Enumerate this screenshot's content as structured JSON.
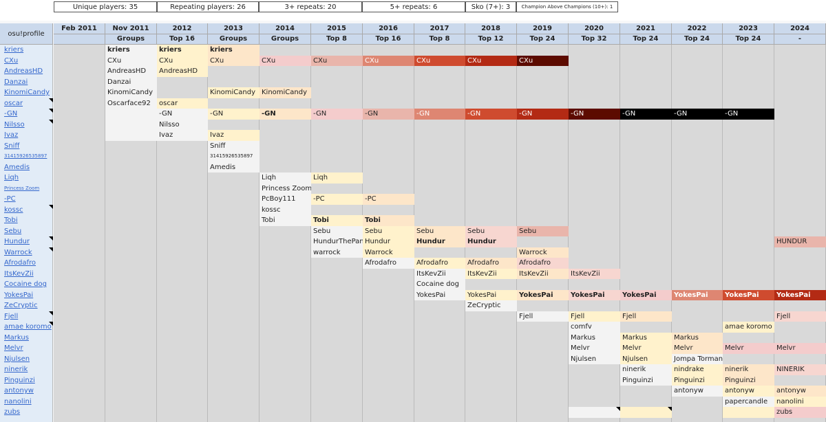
{
  "stats": [
    {
      "label": "Unique players: 35",
      "left": 0,
      "width": 0
    },
    {
      "label": "Repeating players: 26"
    },
    {
      "label": "3+ repeats: 20"
    },
    {
      "label": "5+ repeats: 6"
    },
    {
      "label": "Sko (7+): 3"
    },
    {
      "label": "Champion Above Champions (10+): 1"
    }
  ],
  "profile_header": "osu!profile",
  "players": [
    "kriers",
    "CXu",
    "AndreasHD",
    "Danzai",
    "KinomiCandy",
    "oscar",
    "-GN",
    "Nilsso",
    "Ivaz",
    "Sniff",
    "31415926535897",
    "Amedis",
    "Liqh",
    "Princess Zoom",
    "-PC",
    "kossc",
    "Tobi",
    "Sebu",
    "Hundur",
    "Warrock",
    "Afrodafro",
    "ItsKevZii",
    "Cocaine dog",
    "YokesPai",
    "ZeCryptic",
    "Fjell",
    "amae koromo",
    "Markus",
    "Melvr",
    "Njulsen",
    "ninerik",
    "Pinguinzi",
    "antonyw",
    "nanolini",
    "zubs"
  ],
  "colors": {
    "c0": "#f3f3f3",
    "c1": "#fff2cc",
    "c2": "#fde6c9",
    "c3": "#f7d6d0",
    "c4": "#f4cccc",
    "c5": "#e9b5ab",
    "c6": "#de8672",
    "c7": "#cf4b2f",
    "c8": "#b32a14",
    "c9": "#5c0b00",
    "c10": "#000000"
  },
  "years": [
    {
      "year": "Feb 2011",
      "sub": "",
      "cells": []
    },
    {
      "year": "Nov 2011",
      "sub": "Groups",
      "cells": [
        {
          "r": 0,
          "t": "kriers",
          "c": "c0",
          "b": true
        },
        {
          "r": 1,
          "t": "CXu",
          "c": "c0"
        },
        {
          "r": 2,
          "t": "AndreasHD",
          "c": "c0"
        },
        {
          "r": 3,
          "t": "Danzai",
          "c": "c0"
        },
        {
          "r": 4,
          "t": "KinomiCandy",
          "c": "c0"
        },
        {
          "r": 5,
          "t": "Oscarface92",
          "c": "c0"
        },
        {
          "r": 6,
          "t": "",
          "c": "c0"
        },
        {
          "r": 7,
          "t": "",
          "c": "c0"
        },
        {
          "r": 8,
          "t": "",
          "c": "c0"
        }
      ]
    },
    {
      "year": "2012",
      "sub": "Top 16",
      "cells": [
        {
          "r": 0,
          "t": "kriers",
          "c": "c1",
          "b": true
        },
        {
          "r": 1,
          "t": "CXu",
          "c": "c1"
        },
        {
          "r": 2,
          "t": "AndreasHD",
          "c": "c1"
        },
        {
          "r": 5,
          "t": "oscar",
          "c": "c1"
        },
        {
          "r": 6,
          "t": "-GN",
          "c": "c0"
        },
        {
          "r": 7,
          "t": "Nilsso",
          "c": "c0"
        },
        {
          "r": 8,
          "t": "Ivaz",
          "c": "c0"
        }
      ]
    },
    {
      "year": "2013",
      "sub": "Groups",
      "cells": [
        {
          "r": 0,
          "t": "kriers",
          "c": "c2",
          "b": true
        },
        {
          "r": 1,
          "t": "CXu",
          "c": "c2"
        },
        {
          "r": 4,
          "t": "KinomiCandy",
          "c": "c1"
        },
        {
          "r": 6,
          "t": "-GN",
          "c": "c1"
        },
        {
          "r": 8,
          "t": "Ivaz",
          "c": "c1"
        },
        {
          "r": 9,
          "t": "Sniff",
          "c": "c0"
        },
        {
          "r": 10,
          "t": "31415926535897",
          "c": "c0",
          "tiny": true
        },
        {
          "r": 11,
          "t": "Amedis",
          "c": "c0"
        }
      ]
    },
    {
      "year": "2014",
      "sub": "Groups",
      "cells": [
        {
          "r": 1,
          "t": "CXu",
          "c": "c4"
        },
        {
          "r": 4,
          "t": "KinomiCandy",
          "c": "c2"
        },
        {
          "r": 6,
          "t": "-GN",
          "c": "c2",
          "b": true
        },
        {
          "r": 12,
          "t": "Liqh",
          "c": "c0"
        },
        {
          "r": 13,
          "t": "Princess Zoom",
          "c": "c0"
        },
        {
          "r": 14,
          "t": "PcBoy111",
          "c": "c0"
        },
        {
          "r": 15,
          "t": "kossc",
          "c": "c0"
        },
        {
          "r": 16,
          "t": "Tobi",
          "c": "c0"
        }
      ]
    },
    {
      "year": "2015",
      "sub": "Top 8",
      "cells": [
        {
          "r": 1,
          "t": "CXu",
          "c": "c5"
        },
        {
          "r": 6,
          "t": "-GN",
          "c": "c4"
        },
        {
          "r": 12,
          "t": "Liqh",
          "c": "c1"
        },
        {
          "r": 14,
          "t": "-PC",
          "c": "c1"
        },
        {
          "r": 16,
          "t": "Tobi",
          "c": "c1",
          "b": true
        },
        {
          "r": 17,
          "t": "Sebu",
          "c": "c0"
        },
        {
          "r": 18,
          "t": "HundurThePanda",
          "c": "c0"
        },
        {
          "r": 19,
          "t": "warrock",
          "c": "c0"
        }
      ]
    },
    {
      "year": "2016",
      "sub": "Top 16",
      "cells": [
        {
          "r": 1,
          "t": "CXu",
          "c": "c6"
        },
        {
          "r": 6,
          "t": "-GN",
          "c": "c5"
        },
        {
          "r": 14,
          "t": "-PC",
          "c": "c2"
        },
        {
          "r": 16,
          "t": "Tobi",
          "c": "c2",
          "b": true
        },
        {
          "r": 17,
          "t": "Sebu",
          "c": "c1"
        },
        {
          "r": 18,
          "t": "Hundur",
          "c": "c1"
        },
        {
          "r": 19,
          "t": "Warrock",
          "c": "c1"
        },
        {
          "r": 20,
          "t": "Afrodafro",
          "c": "c0"
        }
      ]
    },
    {
      "year": "2017",
      "sub": "Top 8",
      "cells": [
        {
          "r": 1,
          "t": "CXu",
          "c": "c7"
        },
        {
          "r": 6,
          "t": "-GN",
          "c": "c6"
        },
        {
          "r": 17,
          "t": "Sebu",
          "c": "c2"
        },
        {
          "r": 18,
          "t": "Hundur",
          "c": "c2",
          "b": true
        },
        {
          "r": 20,
          "t": "Afrodafro",
          "c": "c1"
        },
        {
          "r": 21,
          "t": "ItsKevZii",
          "c": "c0"
        },
        {
          "r": 22,
          "t": "Cocaine dog",
          "c": "c0"
        },
        {
          "r": 23,
          "t": "YokesPai",
          "c": "c0"
        }
      ]
    },
    {
      "year": "2018",
      "sub": "Top 12",
      "cells": [
        {
          "r": 1,
          "t": "CXu",
          "c": "c8"
        },
        {
          "r": 6,
          "t": "-GN",
          "c": "c7"
        },
        {
          "r": 17,
          "t": "Sebu",
          "c": "c3"
        },
        {
          "r": 18,
          "t": "Hundur",
          "c": "c3",
          "b": true
        },
        {
          "r": 20,
          "t": "Afrodafro",
          "c": "c2"
        },
        {
          "r": 21,
          "t": "ItsKevZii",
          "c": "c1"
        },
        {
          "r": 23,
          "t": "YokesPai",
          "c": "c1"
        },
        {
          "r": 24,
          "t": "ZeCryptic",
          "c": "c0"
        }
      ]
    },
    {
      "year": "2019",
      "sub": "Top 24",
      "cells": [
        {
          "r": 1,
          "t": "CXu",
          "c": "c9"
        },
        {
          "r": 6,
          "t": "-GN",
          "c": "c8"
        },
        {
          "r": 17,
          "t": "Sebu",
          "c": "c5"
        },
        {
          "r": 19,
          "t": "Warrock",
          "c": "c2"
        },
        {
          "r": 20,
          "t": "Afrodafro",
          "c": "c3"
        },
        {
          "r": 21,
          "t": "ItsKevZii",
          "c": "c2"
        },
        {
          "r": 23,
          "t": "YokesPai",
          "c": "c2",
          "b": true
        },
        {
          "r": 25,
          "t": "Fjell",
          "c": "c0"
        }
      ]
    },
    {
      "year": "2020",
      "sub": "Top 32",
      "cells": [
        {
          "r": 6,
          "t": "-GN",
          "c": "c9"
        },
        {
          "r": 21,
          "t": "ItsKevZii",
          "c": "c3"
        },
        {
          "r": 23,
          "t": "YokesPai",
          "c": "c3",
          "b": true
        },
        {
          "r": 25,
          "t": "Fjell",
          "c": "c1"
        },
        {
          "r": 26,
          "t": "comfv",
          "c": "c0"
        },
        {
          "r": 27,
          "t": "Markus",
          "c": "c0"
        },
        {
          "r": 28,
          "t": "Melvr",
          "c": "c0"
        },
        {
          "r": 29,
          "t": "Njulsen",
          "c": "c0"
        },
        {
          "r": 34,
          "t": "",
          "c": "c0",
          "note": true
        }
      ]
    },
    {
      "year": "2021",
      "sub": "Top 24",
      "cells": [
        {
          "r": 6,
          "t": "-GN",
          "c": "c10"
        },
        {
          "r": 23,
          "t": "YokesPai",
          "c": "c4",
          "b": true
        },
        {
          "r": 25,
          "t": "Fjell",
          "c": "c2"
        },
        {
          "r": 27,
          "t": "Markus",
          "c": "c1"
        },
        {
          "r": 28,
          "t": "Melvr",
          "c": "c1"
        },
        {
          "r": 29,
          "t": "Njulsen",
          "c": "c1"
        },
        {
          "r": 30,
          "t": "ninerik",
          "c": "c0"
        },
        {
          "r": 31,
          "t": "Pinguinzi",
          "c": "c0"
        },
        {
          "r": 34,
          "t": "",
          "c": "c1",
          "note": true
        }
      ]
    },
    {
      "year": "2022",
      "sub": "Top 24",
      "cells": [
        {
          "r": 6,
          "t": "-GN",
          "c": "c10"
        },
        {
          "r": 23,
          "t": "YokesPai",
          "c": "c6",
          "b": true
        },
        {
          "r": 27,
          "t": "Markus",
          "c": "c2"
        },
        {
          "r": 28,
          "t": "Melvr",
          "c": "c2"
        },
        {
          "r": 29,
          "t": "Jompa Tormann",
          "c": "c0"
        },
        {
          "r": 30,
          "t": "nindrake",
          "c": "c1"
        },
        {
          "r": 31,
          "t": "Pinguinzi",
          "c": "c1"
        },
        {
          "r": 32,
          "t": "antonyw",
          "c": "c0"
        }
      ]
    },
    {
      "year": "2023",
      "sub": "Top 24",
      "cells": [
        {
          "r": 6,
          "t": "-GN",
          "c": "c10"
        },
        {
          "r": 23,
          "t": "YokesPai",
          "c": "c7",
          "b": true
        },
        {
          "r": 26,
          "t": "amae koromo",
          "c": "c1"
        },
        {
          "r": 28,
          "t": "Melvr",
          "c": "c4"
        },
        {
          "r": 30,
          "t": "ninerik",
          "c": "c2"
        },
        {
          "r": 31,
          "t": "Pinguinzi",
          "c": "c2"
        },
        {
          "r": 32,
          "t": "antonyw",
          "c": "c1"
        },
        {
          "r": 33,
          "t": "papercandle",
          "c": "c0"
        },
        {
          "r": 34,
          "t": "",
          "c": "c1"
        }
      ]
    },
    {
      "year": "2024",
      "sub": "-",
      "cells": [
        {
          "r": 18,
          "t": "HUNDUR",
          "c": "c5"
        },
        {
          "r": 23,
          "t": "YokesPai",
          "c": "c8",
          "b": true
        },
        {
          "r": 25,
          "t": "Fjell",
          "c": "c3"
        },
        {
          "r": 28,
          "t": "Melvr",
          "c": "c4"
        },
        {
          "r": 30,
          "t": "NINERIK",
          "c": "c3"
        },
        {
          "r": 32,
          "t": "antonyw",
          "c": "c2"
        },
        {
          "r": 33,
          "t": "nanolini",
          "c": "c1"
        },
        {
          "r": 34,
          "t": "zubs",
          "c": "c4"
        }
      ]
    }
  ],
  "profile_notes": [
    5,
    6,
    7,
    15,
    18,
    19,
    25,
    26
  ]
}
